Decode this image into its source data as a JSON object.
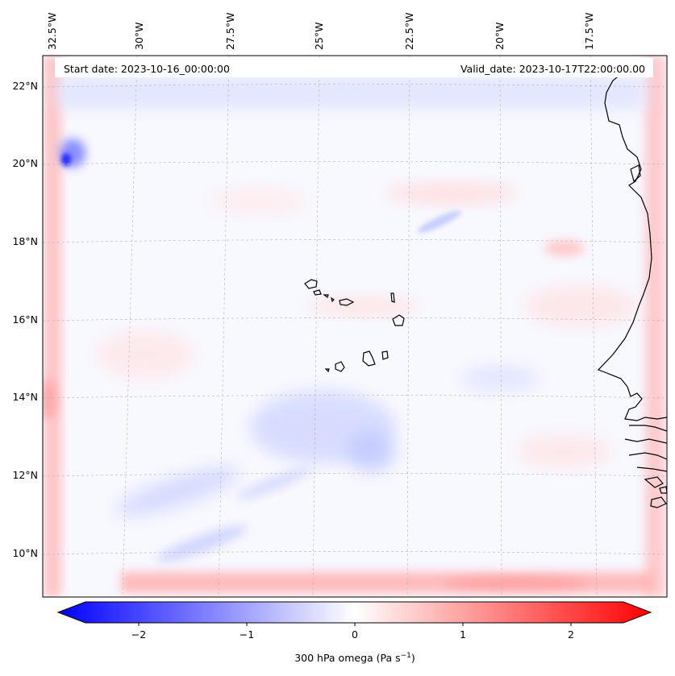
{
  "map": {
    "start_date": "Start date: 2023-10-16_00:00:00",
    "valid_date": "Valid_date: 2023-10-17T22:00:00.00",
    "lon_labels": [
      "32.5°W",
      "30°W",
      "27.5°W",
      "25°W",
      "22.5°W",
      "20°W",
      "17.5°W"
    ],
    "lat_labels": [
      "22°N",
      "20°N",
      "18°N",
      "16°N",
      "14°N",
      "12°N",
      "10°N"
    ],
    "colors": {
      "negative": "#0000ff",
      "neutral": "#ffffff",
      "positive": "#ff0000",
      "coastline": "#000000",
      "gridline": "#b0b0b0"
    }
  },
  "colorbar": {
    "ticks": [
      "−2",
      "−1",
      "0",
      "1",
      "2"
    ],
    "label_main": "300 hPa omega (Pa s",
    "label_sup": "−1",
    "label_end": ")",
    "range": [
      -2.75,
      2.75
    ]
  }
}
